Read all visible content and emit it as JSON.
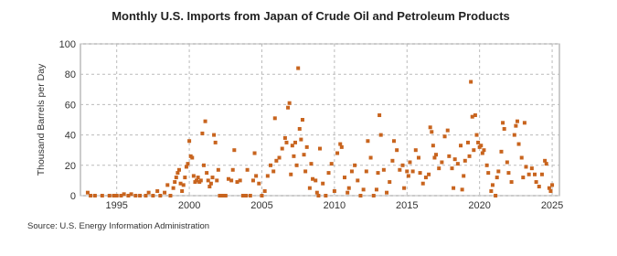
{
  "chart_data": {
    "type": "scatter",
    "title": "Monthly U.S. Imports from Japan of Crude Oil and Petroleum Products",
    "y_label": "Thousand Barrels per Day",
    "source": "Source: U.S. Energy Information Administration",
    "color": "#c8641e",
    "grid": true,
    "xlim": [
      1992.5,
      2025.5
    ],
    "ylim": [
      0,
      100
    ],
    "xticks": [
      1995,
      2000,
      2005,
      2010,
      2015,
      2020,
      2025
    ],
    "yticks": [
      0,
      20,
      40,
      60,
      80,
      100
    ],
    "x": [
      1993.0,
      1993.2,
      1993.5,
      1994.0,
      1994.5,
      1994.8,
      1995.0,
      1995.3,
      1995.5,
      1995.8,
      1996.0,
      1996.3,
      1996.6,
      1997.0,
      1997.2,
      1997.5,
      1997.8,
      1998.0,
      1998.3,
      1998.5,
      1998.7,
      1998.9,
      1999.0,
      1999.1,
      1999.2,
      1999.3,
      1999.4,
      1999.5,
      1999.6,
      1999.7,
      1999.8,
      1999.9,
      2000.0,
      2000.1,
      2000.2,
      2000.3,
      2000.4,
      2000.5,
      2000.6,
      2000.7,
      2000.8,
      2000.9,
      2001.0,
      2001.1,
      2001.2,
      2001.3,
      2001.4,
      2001.5,
      2001.6,
      2001.7,
      2001.8,
      2001.9,
      2002.0,
      2002.1,
      2002.3,
      2002.5,
      2002.7,
      2002.9,
      2003.0,
      2003.1,
      2003.3,
      2003.5,
      2003.7,
      2003.9,
      2004.0,
      2004.2,
      2004.4,
      2004.5,
      2004.6,
      2004.8,
      2005.0,
      2005.2,
      2005.4,
      2005.6,
      2005.8,
      2005.9,
      2006.0,
      2006.2,
      2006.4,
      2006.6,
      2006.7,
      2006.8,
      2006.9,
      2007.0,
      2007.1,
      2007.2,
      2007.3,
      2007.4,
      2007.5,
      2007.6,
      2007.7,
      2007.8,
      2007.9,
      2008.0,
      2008.1,
      2008.3,
      2008.4,
      2008.5,
      2008.7,
      2008.8,
      2008.9,
      2009.0,
      2009.2,
      2009.4,
      2009.6,
      2009.8,
      2010.0,
      2010.2,
      2010.4,
      2010.5,
      2010.7,
      2010.9,
      2011.0,
      2011.2,
      2011.4,
      2011.6,
      2011.8,
      2012.0,
      2012.2,
      2012.3,
      2012.5,
      2012.7,
      2012.9,
      2013.0,
      2013.1,
      2013.2,
      2013.4,
      2013.6,
      2013.8,
      2014.0,
      2014.1,
      2014.3,
      2014.5,
      2014.7,
      2014.8,
      2015.0,
      2015.1,
      2015.2,
      2015.4,
      2015.6,
      2015.8,
      2015.9,
      2016.1,
      2016.3,
      2016.5,
      2016.6,
      2016.7,
      2016.8,
      2016.9,
      2017.0,
      2017.2,
      2017.4,
      2017.6,
      2017.8,
      2017.9,
      2018.1,
      2018.2,
      2018.3,
      2018.5,
      2018.7,
      2018.8,
      2018.9,
      2019.0,
      2019.2,
      2019.3,
      2019.4,
      2019.5,
      2019.6,
      2019.7,
      2019.8,
      2019.9,
      2020.0,
      2020.1,
      2020.2,
      2020.3,
      2020.5,
      2020.6,
      2020.8,
      2020.9,
      2021.1,
      2021.2,
      2021.3,
      2021.5,
      2021.6,
      2021.7,
      2021.9,
      2022.0,
      2022.2,
      2022.4,
      2022.5,
      2022.6,
      2022.7,
      2022.9,
      2023.0,
      2023.1,
      2023.2,
      2023.4,
      2023.6,
      2023.8,
      2023.9,
      2024.1,
      2024.3,
      2024.5,
      2024.6,
      2024.8,
      2024.9,
      2025.0
    ],
    "values": [
      2,
      0,
      0,
      0,
      0,
      0,
      0,
      0,
      1,
      0,
      1,
      0,
      0,
      0,
      2,
      0,
      3,
      0,
      2,
      7,
      0,
      5,
      9,
      12,
      15,
      17,
      8,
      3,
      7,
      12,
      19,
      21,
      36,
      26,
      25,
      13,
      9,
      10,
      12,
      9,
      10,
      41,
      20,
      49,
      15,
      10,
      6,
      8,
      12,
      40,
      35,
      10,
      17,
      0,
      0,
      0,
      11,
      10,
      17,
      30,
      9,
      10,
      0,
      0,
      17,
      0,
      10,
      28,
      13,
      8,
      0,
      3,
      13,
      20,
      16,
      51,
      23,
      25,
      31,
      38,
      35,
      58,
      61,
      14,
      33,
      26,
      35,
      20,
      84,
      44,
      37,
      50,
      27,
      16,
      32,
      5,
      21,
      11,
      10,
      2,
      0,
      31,
      8,
      0,
      15,
      21,
      3,
      28,
      34,
      32,
      12,
      2,
      5,
      16,
      20,
      10,
      0,
      4,
      16,
      36,
      25,
      0,
      4,
      15,
      53,
      40,
      17,
      2,
      9,
      23,
      36,
      30,
      17,
      20,
      5,
      16,
      13,
      22,
      16,
      30,
      25,
      15,
      8,
      12,
      14,
      45,
      42,
      33,
      25,
      27,
      18,
      22,
      39,
      43,
      26,
      18,
      5,
      24,
      21,
      33,
      4,
      13,
      23,
      35,
      26,
      75,
      52,
      30,
      53,
      40,
      35,
      32,
      33,
      28,
      30,
      20,
      15,
      3,
      7,
      0,
      12,
      16,
      29,
      48,
      44,
      22,
      15,
      9,
      40,
      46,
      49,
      34,
      25,
      12,
      48,
      19,
      14,
      18,
      14,
      9,
      6,
      14,
      23,
      21,
      5,
      3,
      7
    ]
  }
}
